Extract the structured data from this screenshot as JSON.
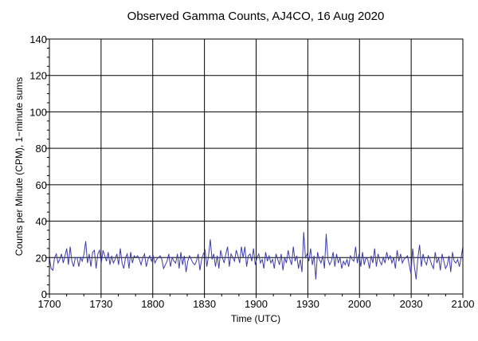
{
  "chart_data": {
    "type": "line",
    "title": "Observed Gamma Counts, AJ4CO, 16 Aug 2020",
    "xlabel": "Time (UTC)",
    "ylabel": "Counts per Minute (CPM), 1−minute sums",
    "xlim_minutes": [
      0,
      240
    ],
    "ylim": [
      0,
      140
    ],
    "x_ticks": [
      {
        "label": "1700",
        "minutes": 0
      },
      {
        "label": "1730",
        "minutes": 30
      },
      {
        "label": "1800",
        "minutes": 60
      },
      {
        "label": "1830",
        "minutes": 90
      },
      {
        "label": "1900",
        "minutes": 120
      },
      {
        "label": "1930",
        "minutes": 150
      },
      {
        "label": "2000",
        "minutes": 180
      },
      {
        "label": "2030",
        "minutes": 210
      },
      {
        "label": "2100",
        "minutes": 240
      }
    ],
    "y_ticks": [
      0,
      20,
      40,
      60,
      80,
      100,
      120,
      140
    ],
    "grid": true,
    "line_color": "#3c3ca8",
    "series": [
      {
        "values": [
          20,
          14,
          13,
          20,
          22,
          17,
          19,
          22,
          17,
          21,
          25,
          16,
          26,
          18,
          15,
          20,
          20,
          15,
          20,
          18,
          22,
          29,
          17,
          22,
          15,
          23,
          24,
          14,
          22,
          24,
          17,
          24,
          21,
          18,
          23,
          16,
          21,
          17,
          19,
          22,
          16,
          25,
          17,
          14,
          20,
          22,
          14,
          23,
          17,
          21,
          20,
          21,
          19,
          16,
          20,
          22,
          15,
          19,
          21,
          18,
          21,
          17,
          19,
          20,
          21,
          19,
          14,
          16,
          18,
          22,
          15,
          20,
          18,
          17,
          22,
          14,
          23,
          16,
          21,
          12,
          18,
          21,
          19,
          17,
          16,
          18,
          22,
          13,
          19,
          22,
          24,
          15,
          21,
          30,
          19,
          22,
          15,
          21,
          14,
          24,
          20,
          17,
          22,
          26,
          15,
          22,
          20,
          18,
          24,
          21,
          17,
          26,
          20,
          26,
          15,
          21,
          22,
          18,
          25,
          16,
          20,
          22,
          17,
          19,
          14,
          23,
          18,
          21,
          17,
          19,
          14,
          22,
          19,
          16,
          22,
          13,
          20,
          17,
          24,
          19,
          16,
          26,
          18,
          21,
          14,
          19,
          12,
          34,
          20,
          22,
          18,
          25,
          16,
          21,
          8,
          23,
          19,
          17,
          21,
          14,
          33,
          19,
          16,
          18,
          23,
          15,
          22,
          17,
          20,
          14,
          18,
          16,
          19,
          15,
          21,
          19,
          18,
          26,
          17,
          22,
          15,
          23,
          16,
          20,
          19,
          14,
          21,
          17,
          25,
          15,
          22,
          18,
          16,
          20,
          17,
          23,
          19,
          21,
          17,
          20,
          14,
          24,
          18,
          22,
          17,
          19,
          20,
          21,
          16,
          11,
          25,
          15,
          8,
          20,
          27,
          15,
          22,
          18,
          16,
          21,
          19,
          16,
          14,
          23,
          17,
          20,
          13,
          22,
          18,
          14,
          16,
          21,
          12,
          23,
          18,
          17,
          19,
          15,
          20,
          26
        ]
      }
    ]
  }
}
